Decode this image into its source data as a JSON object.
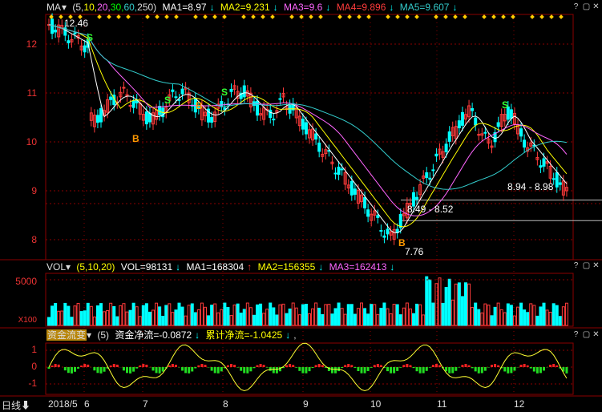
{
  "price_header": {
    "indicator": "MA",
    "params_open": "(5,",
    "p10": "10,",
    "p20": "20,",
    "p30": "30,",
    "p60": "60,",
    "p250": "250)",
    "ma1": "MA1=8.97",
    "ma2": "MA2=9.231",
    "ma3": "MA3=9.6",
    "ma4": "MA4=9.896",
    "ma5": "MA5=9.607"
  },
  "vol_header": {
    "indicator": "VOL",
    "params": "(5,10,20)",
    "vol": "VOL=98131",
    "ma1": "MA1=168304",
    "ma2": "MA2=156355",
    "ma3": "MA3=162413"
  },
  "fund_header": {
    "indicator": "资金流变",
    "params": "(5)",
    "net": "资金净流=-0.0872",
    "cum": "累计净流=-1.0425"
  },
  "price_axis": [
    "12",
    "11",
    "10",
    "9",
    "8"
  ],
  "vol_axis": [
    "5000",
    "X100"
  ],
  "fund_axis": [
    "1",
    "0",
    "-1"
  ],
  "dates": [
    "2018/5",
    "6",
    "7",
    "8",
    "9",
    "10",
    "11",
    "12"
  ],
  "period_label": "日线",
  "annotations": {
    "high": "12.46",
    "low": "7.76",
    "range1": "8.94 - 8.98",
    "range2": "8.49 - 8.52"
  },
  "signals": {
    "buy": "B",
    "sell": "S"
  },
  "colors": {
    "up": "#ff3b3b",
    "down": "#00ffff",
    "ma1": "#ffffff",
    "ma2": "#ffff00",
    "ma3": "#ff66ff",
    "ma4": "#00ff00",
    "ma5": "#33cccc",
    "grid": "#8b0000"
  },
  "chart_data": {
    "type": "candlestick",
    "x": [
      "2018/5",
      "6",
      "7",
      "8",
      "9",
      "10",
      "11",
      "12"
    ],
    "yticks": [
      12,
      11,
      10,
      9,
      8
    ],
    "high": 12.46,
    "low": 7.76,
    "close_levels": [
      8.94,
      8.98,
      8.49,
      8.52
    ]
  }
}
